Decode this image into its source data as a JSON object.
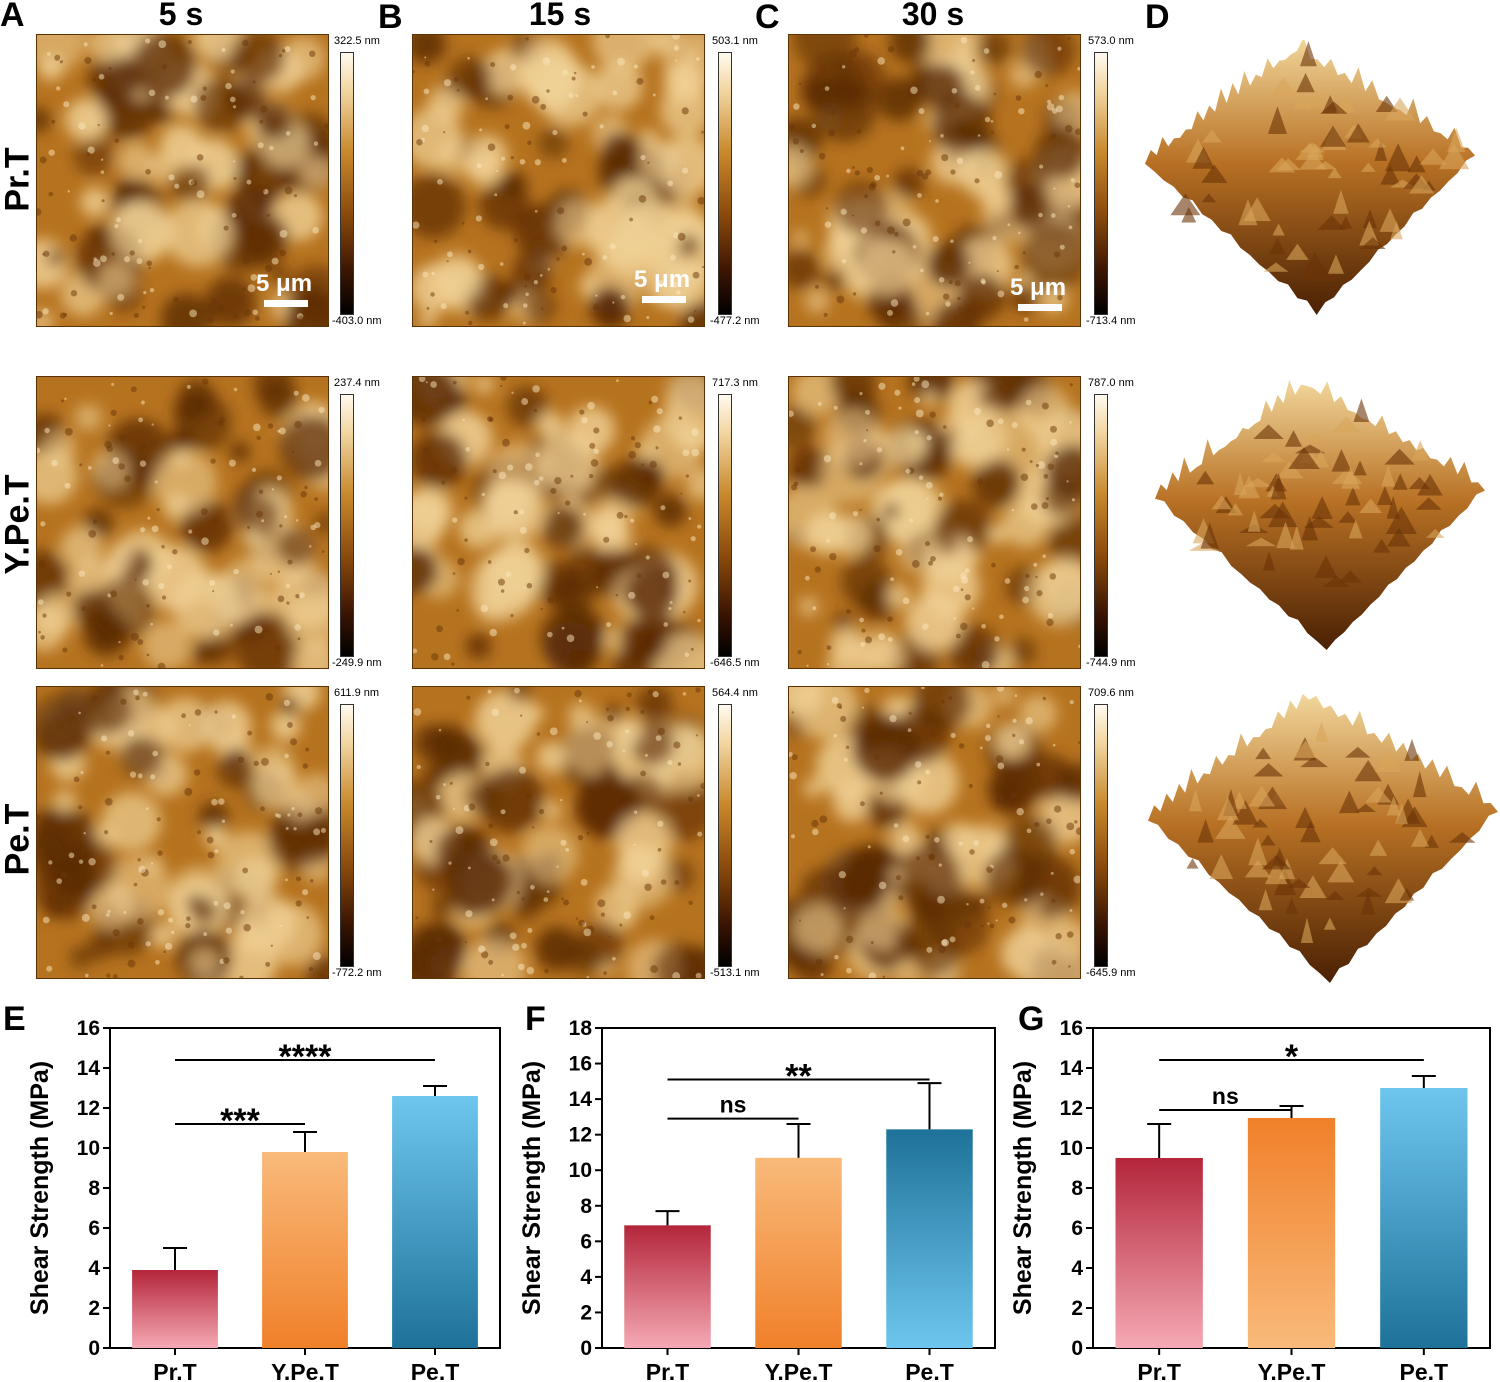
{
  "panel_letters": {
    "A": "A",
    "B": "B",
    "C": "C",
    "D": "D",
    "E": "E",
    "F": "F",
    "G": "G"
  },
  "col_headers": [
    "5 s",
    "15 s",
    "30 s"
  ],
  "row_labels": [
    "Pr.T",
    "Y.Pe.T",
    "Pe.T"
  ],
  "scalebar_label": "5 μm",
  "colorbars": [
    [
      {
        "max": "322.5 nm",
        "min": "-403.0 nm"
      },
      {
        "max": "503.1 nm",
        "min": "-477.2 nm"
      },
      {
        "max": "573.0 nm",
        "min": "-713.4 nm"
      }
    ],
    [
      {
        "max": "237.4 nm",
        "min": "-249.9 nm"
      },
      {
        "max": "717.3 nm",
        "min": "-646.5 nm"
      },
      {
        "max": "787.0 nm",
        "min": "-744.9 nm"
      }
    ],
    [
      {
        "max": "611.9 nm",
        "min": "-772.2 nm"
      },
      {
        "max": "564.4 nm",
        "min": "-513.1 nm"
      },
      {
        "max": "709.6 nm",
        "min": "-645.9 nm"
      }
    ]
  ],
  "colors": {
    "afm_dark": "#5a2a04",
    "afm_mid": "#b6731f",
    "afm_light": "#f0d196",
    "pr_top": "#b3253a",
    "pr_bottom": "#f5a9b4",
    "ype_top": "#f9ba7a",
    "ype_bottom": "#f0802a",
    "pe_top": "#6ec6ef",
    "pe_bottom": "#1e7299"
  },
  "chart_data": [
    {
      "type": "bar",
      "panel": "E",
      "categories": [
        "Pr.T",
        "Y.Pe.T",
        "Pe.T"
      ],
      "values": [
        3.9,
        9.8,
        12.6
      ],
      "errors": [
        1.1,
        1.0,
        0.5
      ],
      "ylabel": "Shear Strength (MPa)",
      "ylim": [
        0,
        16
      ],
      "yticks": [
        0,
        2,
        4,
        6,
        8,
        10,
        12,
        14,
        16
      ],
      "gradient": [
        "dark-top",
        "light-top",
        "light-top"
      ],
      "significance": [
        {
          "from": 0,
          "to": 2,
          "label": "****",
          "y": 14.4
        },
        {
          "from": 0,
          "to": 1,
          "label": "***",
          "y": 11.2
        }
      ]
    },
    {
      "type": "bar",
      "panel": "F",
      "categories": [
        "Pr.T",
        "Y.Pe.T",
        "Pe.T"
      ],
      "values": [
        6.9,
        10.7,
        12.3
      ],
      "errors": [
        0.8,
        1.9,
        2.6
      ],
      "ylabel": "Shear Strength (MPa)",
      "ylim": [
        0,
        18
      ],
      "yticks": [
        0,
        2,
        4,
        6,
        8,
        10,
        12,
        14,
        16,
        18
      ],
      "gradient": [
        "dark-top",
        "light-top",
        "dark-top"
      ],
      "significance": [
        {
          "from": 0,
          "to": 2,
          "label": "**",
          "y": 15.1
        },
        {
          "from": 0,
          "to": 1,
          "label": "ns",
          "y": 12.9
        }
      ]
    },
    {
      "type": "bar",
      "panel": "G",
      "categories": [
        "Pr.T",
        "Y.Pe.T",
        "Pe.T"
      ],
      "values": [
        9.5,
        11.5,
        13.0
      ],
      "errors": [
        1.7,
        0.6,
        0.6
      ],
      "ylabel": "Shear Strength (MPa)",
      "ylim": [
        0,
        16
      ],
      "yticks": [
        0,
        2,
        4,
        6,
        8,
        10,
        12,
        14,
        16
      ],
      "gradient": [
        "dark-top",
        "dark-top",
        "light-top"
      ],
      "significance": [
        {
          "from": 0,
          "to": 2,
          "label": "*",
          "y": 14.4
        },
        {
          "from": 0,
          "to": 1,
          "label": "ns",
          "y": 11.9
        }
      ]
    }
  ]
}
